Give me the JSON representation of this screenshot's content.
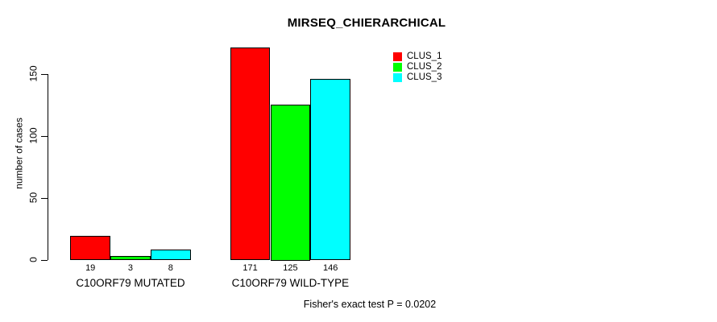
{
  "title": "MIRSEQ_CHIERARCHICAL",
  "footer_note": "Fisher's exact test P = 0.0202",
  "colors": {
    "background": "#ffffff",
    "axis": "#000000",
    "clus_1": "#ff0000",
    "clus_2": "#00ff00",
    "clus_3": "#00ffff"
  },
  "chart_data": {
    "type": "bar",
    "title": "MIRSEQ_CHIERARCHICAL",
    "xlabel": "",
    "ylabel": "number of cases",
    "categories": [
      "C10ORF79 MUTATED",
      "C10ORF79 WILD-TYPE"
    ],
    "series": [
      {
        "name": "CLUS_1",
        "color": "#ff0000",
        "values": [
          19,
          171
        ]
      },
      {
        "name": "CLUS_2",
        "color": "#00ff00",
        "values": [
          3,
          125
        ]
      },
      {
        "name": "CLUS_3",
        "color": "#00ffff",
        "values": [
          8,
          146
        ]
      }
    ],
    "bar_value_labels": [
      [
        "19",
        "3",
        "8"
      ],
      [
        "171",
        "125",
        "146"
      ]
    ],
    "yticks": [
      0,
      50,
      100,
      150
    ],
    "ylim": [
      0,
      175
    ],
    "grid": false,
    "legend_position": "top-right",
    "legend_entries": [
      "CLUS_1",
      "CLUS_2",
      "CLUS_3"
    ],
    "annotation": "Fisher's exact test P = 0.0202"
  }
}
